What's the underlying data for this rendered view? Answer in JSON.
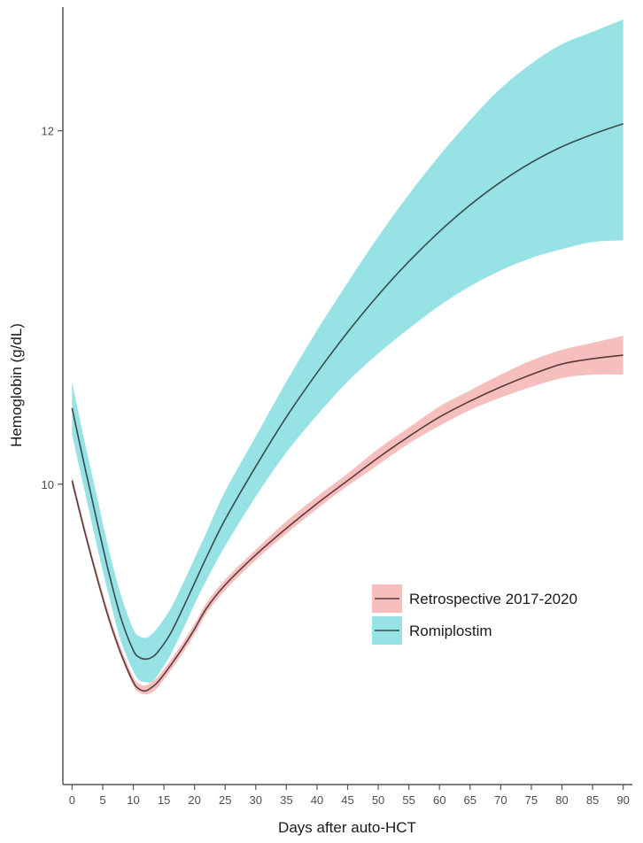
{
  "chart_data": {
    "type": "line",
    "title": "",
    "xlabel": "Days after auto-HCT",
    "ylabel": "Hemoglobin (g/dL)",
    "xlim": [
      -1.5,
      91.5
    ],
    "ylim": [
      8.3,
      12.7
    ],
    "x_ticks": [
      0,
      5,
      10,
      15,
      20,
      25,
      30,
      35,
      40,
      45,
      50,
      55,
      60,
      65,
      70,
      75,
      80,
      85,
      90
    ],
    "y_ticks": [
      10,
      12
    ],
    "grid": false,
    "legend": "inside-right",
    "series": [
      {
        "name": "Retrospective 2017-2020",
        "color": "#F8766D",
        "fill_color": "#F7BEBE",
        "line_color": "#5a3a3a",
        "x": [
          0,
          2,
          4,
          6,
          8,
          10,
          11,
          12,
          13,
          14,
          16,
          18,
          20,
          22,
          25,
          30,
          35,
          40,
          45,
          50,
          55,
          60,
          65,
          70,
          75,
          80,
          85,
          90
        ],
        "y": [
          10.02,
          9.74,
          9.48,
          9.24,
          9.04,
          8.88,
          8.84,
          8.83,
          8.85,
          8.88,
          8.97,
          9.07,
          9.18,
          9.3,
          9.43,
          9.6,
          9.75,
          9.89,
          10.02,
          10.15,
          10.27,
          10.38,
          10.47,
          10.55,
          10.62,
          10.68,
          10.71,
          10.73
        ],
        "lower": [
          9.99,
          9.72,
          9.46,
          9.22,
          9.02,
          8.86,
          8.82,
          8.81,
          8.82,
          8.85,
          8.94,
          9.04,
          9.15,
          9.27,
          9.4,
          9.57,
          9.72,
          9.86,
          9.99,
          10.11,
          10.23,
          10.33,
          10.42,
          10.49,
          10.55,
          10.6,
          10.62,
          10.62
        ],
        "upper": [
          10.05,
          9.77,
          9.51,
          9.27,
          9.07,
          8.91,
          8.87,
          8.86,
          8.88,
          8.91,
          9.0,
          9.1,
          9.21,
          9.33,
          9.46,
          9.63,
          9.79,
          9.93,
          10.06,
          10.2,
          10.32,
          10.44,
          10.53,
          10.62,
          10.7,
          10.76,
          10.8,
          10.84
        ]
      },
      {
        "name": "Romiplostim",
        "color": "#00BFC4",
        "fill_color": "#96E2E5",
        "line_color": "#3a4a4a",
        "x": [
          0,
          2,
          4,
          6,
          8,
          10,
          11,
          12,
          13,
          14,
          16,
          18,
          20,
          22,
          25,
          30,
          35,
          40,
          45,
          50,
          55,
          60,
          65,
          70,
          75,
          80,
          85,
          90
        ],
        "y": [
          10.43,
          10.11,
          9.8,
          9.5,
          9.24,
          9.06,
          9.02,
          9.01,
          9.02,
          9.05,
          9.15,
          9.29,
          9.44,
          9.59,
          9.8,
          10.1,
          10.38,
          10.63,
          10.86,
          11.07,
          11.26,
          11.43,
          11.58,
          11.71,
          11.82,
          11.91,
          11.98,
          12.04
        ],
        "lower": [
          10.28,
          9.97,
          9.66,
          9.37,
          9.11,
          8.94,
          8.89,
          8.88,
          8.88,
          8.92,
          9.03,
          9.17,
          9.32,
          9.46,
          9.65,
          9.93,
          10.18,
          10.39,
          10.58,
          10.74,
          10.88,
          11.01,
          11.12,
          11.21,
          11.28,
          11.33,
          11.37,
          11.38
        ],
        "upper": [
          10.58,
          10.25,
          9.94,
          9.63,
          9.37,
          9.18,
          9.14,
          9.13,
          9.15,
          9.19,
          9.29,
          9.43,
          9.58,
          9.73,
          9.96,
          10.27,
          10.58,
          10.87,
          11.14,
          11.4,
          11.64,
          11.86,
          12.06,
          12.24,
          12.38,
          12.49,
          12.56,
          12.63
        ]
      }
    ]
  }
}
